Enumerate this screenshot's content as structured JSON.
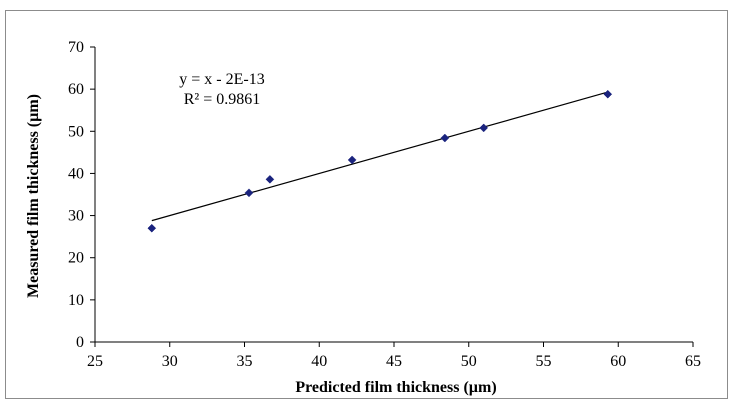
{
  "chart_data": {
    "type": "scatter",
    "title": "",
    "xlabel": "Predicted film thickness (µm)",
    "ylabel": "Measured film thickness (µm)",
    "xlim": [
      25,
      65
    ],
    "ylim": [
      0,
      70
    ],
    "xticks": [
      25,
      30,
      35,
      40,
      45,
      50,
      55,
      60,
      65
    ],
    "yticks": [
      0,
      10,
      20,
      30,
      40,
      50,
      60,
      70
    ],
    "grid": false,
    "legend": "none",
    "series": [
      {
        "marker": "diamond",
        "color": "#1a237e",
        "points": [
          {
            "x": 28.8,
            "y": 27.0
          },
          {
            "x": 35.3,
            "y": 35.4
          },
          {
            "x": 36.7,
            "y": 38.6
          },
          {
            "x": 42.2,
            "y": 43.2
          },
          {
            "x": 48.4,
            "y": 48.4
          },
          {
            "x": 51.0,
            "y": 50.8
          },
          {
            "x": 59.3,
            "y": 58.8
          }
        ]
      }
    ],
    "trendline": {
      "slope": 1,
      "intercept": 0,
      "x_range": [
        28.8,
        59.3
      ],
      "color": "#000000"
    },
    "annotations": {
      "equation": "y = x - 2E-13",
      "r_squared": "R² = 0.9861"
    }
  }
}
